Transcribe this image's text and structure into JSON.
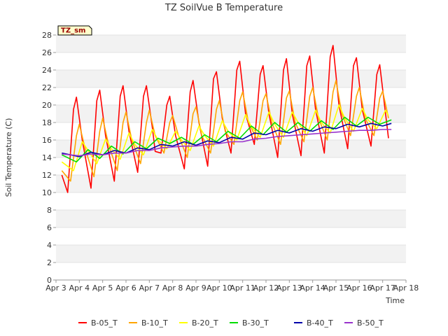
{
  "chart_data": {
    "type": "line",
    "title": "TZ SoilVue B Temperature",
    "xlabel": "Time",
    "ylabel": "Soil Temperature (C)",
    "badge": "TZ_sm",
    "x_ticks": [
      "Apr 3",
      "Apr 4",
      "Apr 5",
      "Apr 6",
      "Apr 7",
      "Apr 8",
      "Apr 9",
      "Apr 10",
      "Apr 11",
      "Apr 12",
      "Apr 13",
      "Apr 14",
      "Apr 15",
      "Apr 16",
      "Apr 17",
      "Apr 18"
    ],
    "y_ticks": [
      "0",
      "2",
      "4",
      "6",
      "8",
      "10",
      "12",
      "14",
      "16",
      "18",
      "20",
      "22",
      "24",
      "26",
      "28"
    ],
    "xlim": [
      "Apr 3",
      "Apr 18"
    ],
    "ylim": [
      0,
      28
    ],
    "grid": "horizontal bands",
    "legend_position": "bottom",
    "series": [
      {
        "name": "B-05_T",
        "color": "#ff0000",
        "points": [
          [
            "Apr 3 06:00",
            12.0
          ],
          [
            "Apr 3 12:00",
            10.0
          ],
          [
            "Apr 3 18:00",
            19.5
          ],
          [
            "Apr 3 21:00",
            20.9
          ],
          [
            "Apr 4 03:00",
            16.0
          ],
          [
            "Apr 4 12:00",
            10.5
          ],
          [
            "Apr 4 18:00",
            20.5
          ],
          [
            "Apr 4 21:00",
            21.7
          ],
          [
            "Apr 5 03:00",
            16.5
          ],
          [
            "Apr 5 12:00",
            11.3
          ],
          [
            "Apr 5 18:00",
            21.0
          ],
          [
            "Apr 5 21:00",
            22.2
          ],
          [
            "Apr 6 03:00",
            17.0
          ],
          [
            "Apr 6 12:00",
            12.3
          ],
          [
            "Apr 6 18:00",
            21.0
          ],
          [
            "Apr 6 21:00",
            22.2
          ],
          [
            "Apr 7 03:00",
            17.5
          ],
          [
            "Apr 7 06:00",
            14.7
          ],
          [
            "Apr 7 12:00",
            14.5
          ],
          [
            "Apr 7 18:00",
            20.0
          ],
          [
            "Apr 7 21:00",
            21.0
          ],
          [
            "Apr 8 03:00",
            16.5
          ],
          [
            "Apr 8 12:00",
            12.7
          ],
          [
            "Apr 8 18:00",
            21.5
          ],
          [
            "Apr 8 21:00",
            22.8
          ],
          [
            "Apr 9 03:00",
            18.0
          ],
          [
            "Apr 9 12:00",
            13.0
          ],
          [
            "Apr 9 18:00",
            23.0
          ],
          [
            "Apr 9 21:00",
            23.8
          ],
          [
            "Apr 10 03:00",
            18.5
          ],
          [
            "Apr 10 12:00",
            14.5
          ],
          [
            "Apr 10 18:00",
            24.0
          ],
          [
            "Apr 10 21:00",
            25.0
          ],
          [
            "Apr 11 03:00",
            19.0
          ],
          [
            "Apr 11 12:00",
            15.5
          ],
          [
            "Apr 11 18:00",
            23.5
          ],
          [
            "Apr 11 21:00",
            24.5
          ],
          [
            "Apr 12 03:00",
            19.0
          ],
          [
            "Apr 12 12:00",
            14.0
          ],
          [
            "Apr 12 18:00",
            24.0
          ],
          [
            "Apr 12 21:00",
            25.3
          ],
          [
            "Apr 13 03:00",
            19.0
          ],
          [
            "Apr 13 12:00",
            14.2
          ],
          [
            "Apr 13 18:00",
            24.5
          ],
          [
            "Apr 13 21:00",
            25.6
          ],
          [
            "Apr 14 03:00",
            19.5
          ],
          [
            "Apr 14 12:00",
            14.5
          ],
          [
            "Apr 14 18:00",
            25.5
          ],
          [
            "Apr 14 21:00",
            26.8
          ],
          [
            "Apr 15 03:00",
            20.0
          ],
          [
            "Apr 15 12:00",
            15.0
          ],
          [
            "Apr 15 18:00",
            24.5
          ],
          [
            "Apr 15 21:00",
            25.4
          ],
          [
            "Apr 16 03:00",
            19.5
          ],
          [
            "Apr 16 12:00",
            15.3
          ],
          [
            "Apr 16 18:00",
            23.5
          ],
          [
            "Apr 16 21:00",
            24.6
          ],
          [
            "Apr 17 03:00",
            19.0
          ],
          [
            "Apr 17 06:00",
            16.2
          ]
        ]
      },
      {
        "name": "B-10_T",
        "color": "#ffa500",
        "points": [
          [
            "Apr 3 06:00",
            12.5
          ],
          [
            "Apr 3 15:00",
            11.3
          ],
          [
            "Apr 3 21:00",
            16.5
          ],
          [
            "Apr 4 00:00",
            17.8
          ],
          [
            "Apr 4 06:00",
            15.0
          ],
          [
            "Apr 4 15:00",
            11.8
          ],
          [
            "Apr 4 21:00",
            17.0
          ],
          [
            "Apr 5 00:00",
            18.5
          ],
          [
            "Apr 5 06:00",
            15.5
          ],
          [
            "Apr 5 15:00",
            12.5
          ],
          [
            "Apr 5 21:00",
            18.0
          ],
          [
            "Apr 6 00:00",
            19.2
          ],
          [
            "Apr 6 06:00",
            16.0
          ],
          [
            "Apr 6 15:00",
            13.3
          ],
          [
            "Apr 6 21:00",
            18.0
          ],
          [
            "Apr 7 00:00",
            19.4
          ],
          [
            "Apr 7 06:00",
            16.5
          ],
          [
            "Apr 7 15:00",
            14.5
          ],
          [
            "Apr 7 21:00",
            18.0
          ],
          [
            "Apr 8 00:00",
            18.8
          ],
          [
            "Apr 8 06:00",
            16.5
          ],
          [
            "Apr 8 15:00",
            14.0
          ],
          [
            "Apr 8 21:00",
            19.0
          ],
          [
            "Apr 9 00:00",
            19.8
          ],
          [
            "Apr 9 06:00",
            16.5
          ],
          [
            "Apr 9 15:00",
            14.5
          ],
          [
            "Apr 9 21:00",
            19.5
          ],
          [
            "Apr 10 00:00",
            20.5
          ],
          [
            "Apr 10 06:00",
            17.0
          ],
          [
            "Apr 10 15:00",
            15.5
          ],
          [
            "Apr 10 21:00",
            20.5
          ],
          [
            "Apr 11 00:00",
            21.5
          ],
          [
            "Apr 11 06:00",
            18.0
          ],
          [
            "Apr 11 15:00",
            16.0
          ],
          [
            "Apr 11 21:00",
            20.5
          ],
          [
            "Apr 12 00:00",
            21.3
          ],
          [
            "Apr 12 06:00",
            18.0
          ],
          [
            "Apr 12 15:00",
            15.5
          ],
          [
            "Apr 12 21:00",
            20.8
          ],
          [
            "Apr 13 00:00",
            21.6
          ],
          [
            "Apr 13 06:00",
            18.0
          ],
          [
            "Apr 13 15:00",
            15.8
          ],
          [
            "Apr 13 21:00",
            21.0
          ],
          [
            "Apr 14 00:00",
            22.0
          ],
          [
            "Apr 14 06:00",
            18.5
          ],
          [
            "Apr 14 15:00",
            16.0
          ],
          [
            "Apr 14 21:00",
            21.5
          ],
          [
            "Apr 15 00:00",
            22.8
          ],
          [
            "Apr 15 06:00",
            19.0
          ],
          [
            "Apr 15 15:00",
            16.5
          ],
          [
            "Apr 15 21:00",
            21.0
          ],
          [
            "Apr 16 00:00",
            22.0
          ],
          [
            "Apr 16 06:00",
            18.5
          ],
          [
            "Apr 16 15:00",
            16.5
          ],
          [
            "Apr 16 21:00",
            20.8
          ],
          [
            "Apr 17 00:00",
            21.6
          ],
          [
            "Apr 17 06:00",
            18.5
          ]
        ]
      },
      {
        "name": "B-20_T",
        "color": "#ffff00",
        "points": [
          [
            "Apr 3 06:00",
            13.5
          ],
          [
            "Apr 3 18:00",
            12.5
          ],
          [
            "Apr 4 03:00",
            15.8
          ],
          [
            "Apr 4 09:00",
            14.8
          ],
          [
            "Apr 4 18:00",
            13.3
          ],
          [
            "Apr 5 03:00",
            16.1
          ],
          [
            "Apr 5 09:00",
            15.0
          ],
          [
            "Apr 5 18:00",
            13.8
          ],
          [
            "Apr 6 03:00",
            16.8
          ],
          [
            "Apr 6 09:00",
            15.5
          ],
          [
            "Apr 6 18:00",
            14.3
          ],
          [
            "Apr 7 03:00",
            17.2
          ],
          [
            "Apr 7 09:00",
            16.0
          ],
          [
            "Apr 7 18:00",
            15.0
          ],
          [
            "Apr 8 03:00",
            17.0
          ],
          [
            "Apr 8 09:00",
            16.0
          ],
          [
            "Apr 8 18:00",
            14.8
          ],
          [
            "Apr 9 03:00",
            17.6
          ],
          [
            "Apr 9 09:00",
            16.5
          ],
          [
            "Apr 9 18:00",
            15.3
          ],
          [
            "Apr 10 03:00",
            18.2
          ],
          [
            "Apr 10 09:00",
            17.0
          ],
          [
            "Apr 10 18:00",
            16.0
          ],
          [
            "Apr 11 03:00",
            18.9
          ],
          [
            "Apr 11 09:00",
            17.5
          ],
          [
            "Apr 11 18:00",
            16.3
          ],
          [
            "Apr 12 03:00",
            19.2
          ],
          [
            "Apr 12 09:00",
            17.8
          ],
          [
            "Apr 12 18:00",
            16.3
          ],
          [
            "Apr 13 03:00",
            19.2
          ],
          [
            "Apr 13 09:00",
            18.0
          ],
          [
            "Apr 13 18:00",
            16.5
          ],
          [
            "Apr 14 03:00",
            19.4
          ],
          [
            "Apr 14 09:00",
            18.0
          ],
          [
            "Apr 14 18:00",
            16.8
          ],
          [
            "Apr 15 03:00",
            20.0
          ],
          [
            "Apr 15 09:00",
            18.5
          ],
          [
            "Apr 15 18:00",
            17.0
          ],
          [
            "Apr 16 03:00",
            19.6
          ],
          [
            "Apr 16 09:00",
            18.3
          ],
          [
            "Apr 16 18:00",
            17.3
          ],
          [
            "Apr 17 03:00",
            19.4
          ],
          [
            "Apr 17 06:00",
            18.8
          ]
        ]
      },
      {
        "name": "B-30_T",
        "color": "#00dd00",
        "points": [
          [
            "Apr 3 06:00",
            14.3
          ],
          [
            "Apr 3 21:00",
            13.5
          ],
          [
            "Apr 4 09:00",
            14.9
          ],
          [
            "Apr 4 21:00",
            13.9
          ],
          [
            "Apr 5 09:00",
            15.3
          ],
          [
            "Apr 5 21:00",
            14.4
          ],
          [
            "Apr 6 09:00",
            15.8
          ],
          [
            "Apr 6 21:00",
            15.0
          ],
          [
            "Apr 7 09:00",
            16.2
          ],
          [
            "Apr 7 21:00",
            15.6
          ],
          [
            "Apr 8 09:00",
            16.3
          ],
          [
            "Apr 8 21:00",
            15.5
          ],
          [
            "Apr 9 09:00",
            16.6
          ],
          [
            "Apr 9 21:00",
            15.8
          ],
          [
            "Apr 10 09:00",
            17.0
          ],
          [
            "Apr 10 21:00",
            16.2
          ],
          [
            "Apr 11 09:00",
            17.6
          ],
          [
            "Apr 11 21:00",
            16.6
          ],
          [
            "Apr 12 09:00",
            18.0
          ],
          [
            "Apr 12 21:00",
            16.9
          ],
          [
            "Apr 13 09:00",
            18.0
          ],
          [
            "Apr 13 21:00",
            17.0
          ],
          [
            "Apr 14 09:00",
            18.2
          ],
          [
            "Apr 14 21:00",
            17.2
          ],
          [
            "Apr 15 09:00",
            18.6
          ],
          [
            "Apr 15 21:00",
            17.6
          ],
          [
            "Apr 16 09:00",
            18.6
          ],
          [
            "Apr 16 21:00",
            17.8
          ],
          [
            "Apr 17 09:00",
            18.3
          ]
        ]
      },
      {
        "name": "B-40_T",
        "color": "#0000aa",
        "points": [
          [
            "Apr 3 06:00",
            14.5
          ],
          [
            "Apr 4 00:00",
            14.1
          ],
          [
            "Apr 4 12:00",
            14.6
          ],
          [
            "Apr 5 00:00",
            14.3
          ],
          [
            "Apr 5 12:00",
            14.8
          ],
          [
            "Apr 6 00:00",
            14.5
          ],
          [
            "Apr 6 12:00",
            15.1
          ],
          [
            "Apr 7 00:00",
            14.9
          ],
          [
            "Apr 7 12:00",
            15.5
          ],
          [
            "Apr 8 00:00",
            15.3
          ],
          [
            "Apr 8 12:00",
            15.8
          ],
          [
            "Apr 9 00:00",
            15.4
          ],
          [
            "Apr 9 12:00",
            15.9
          ],
          [
            "Apr 10 00:00",
            15.7
          ],
          [
            "Apr 10 12:00",
            16.3
          ],
          [
            "Apr 11 00:00",
            16.1
          ],
          [
            "Apr 11 12:00",
            16.8
          ],
          [
            "Apr 12 00:00",
            16.6
          ],
          [
            "Apr 12 12:00",
            17.1
          ],
          [
            "Apr 13 00:00",
            16.8
          ],
          [
            "Apr 13 12:00",
            17.3
          ],
          [
            "Apr 14 00:00",
            17.0
          ],
          [
            "Apr 14 12:00",
            17.5
          ],
          [
            "Apr 15 00:00",
            17.3
          ],
          [
            "Apr 15 12:00",
            17.8
          ],
          [
            "Apr 16 00:00",
            17.5
          ],
          [
            "Apr 16 12:00",
            17.9
          ],
          [
            "Apr 17 00:00",
            17.6
          ],
          [
            "Apr 17 09:00",
            17.9
          ]
        ]
      },
      {
        "name": "B-50_T",
        "color": "#9933cc",
        "points": [
          [
            "Apr 3 06:00",
            14.4
          ],
          [
            "Apr 4 00:00",
            14.2
          ],
          [
            "Apr 4 12:00",
            14.4
          ],
          [
            "Apr 5 00:00",
            14.3
          ],
          [
            "Apr 5 12:00",
            14.5
          ],
          [
            "Apr 6 00:00",
            14.5
          ],
          [
            "Apr 6 12:00",
            14.8
          ],
          [
            "Apr 7 00:00",
            14.8
          ],
          [
            "Apr 7 12:00",
            15.1
          ],
          [
            "Apr 8 00:00",
            15.2
          ],
          [
            "Apr 8 12:00",
            15.3
          ],
          [
            "Apr 9 00:00",
            15.3
          ],
          [
            "Apr 9 12:00",
            15.5
          ],
          [
            "Apr 10 00:00",
            15.6
          ],
          [
            "Apr 10 12:00",
            15.8
          ],
          [
            "Apr 11 00:00",
            15.8
          ],
          [
            "Apr 11 12:00",
            16.1
          ],
          [
            "Apr 12 00:00",
            16.2
          ],
          [
            "Apr 12 12:00",
            16.4
          ],
          [
            "Apr 13 00:00",
            16.5
          ],
          [
            "Apr 13 12:00",
            16.6
          ],
          [
            "Apr 14 00:00",
            16.7
          ],
          [
            "Apr 14 12:00",
            16.8
          ],
          [
            "Apr 15 00:00",
            16.9
          ],
          [
            "Apr 15 12:00",
            17.0
          ],
          [
            "Apr 16 00:00",
            17.1
          ],
          [
            "Apr 16 12:00",
            17.1
          ],
          [
            "Apr 17 00:00",
            17.2
          ],
          [
            "Apr 17 09:00",
            17.2
          ]
        ]
      }
    ]
  }
}
